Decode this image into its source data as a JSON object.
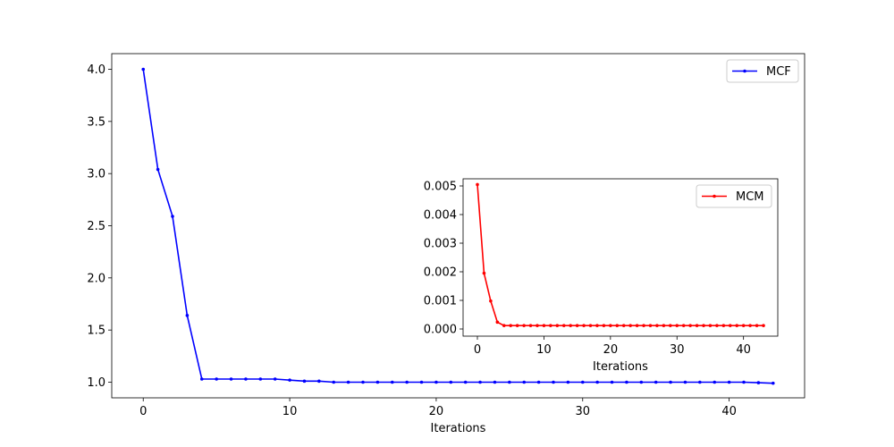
{
  "chart_data": [
    {
      "type": "line",
      "xlabel": "Iterations",
      "ylabel": "",
      "xlim": [
        -2.15,
        45.15
      ],
      "ylim": [
        0.85,
        4.15
      ],
      "xticks": [
        0,
        10,
        20,
        30,
        40
      ],
      "yticks": [
        1.0,
        1.5,
        2.0,
        2.5,
        3.0,
        3.5,
        4.0
      ],
      "ytick_labels": [
        "1.0",
        "1.5",
        "2.0",
        "2.5",
        "3.0",
        "3.5",
        "4.0"
      ],
      "legend_position": "top-right",
      "grid": false,
      "series": [
        {
          "name": "MCF",
          "color": "#0000ff",
          "x": [
            0,
            1,
            2,
            3,
            4,
            5,
            6,
            7,
            8,
            9,
            10,
            11,
            12,
            13,
            14,
            15,
            16,
            17,
            18,
            19,
            20,
            21,
            22,
            23,
            24,
            25,
            26,
            27,
            28,
            29,
            30,
            31,
            32,
            33,
            34,
            35,
            36,
            37,
            38,
            39,
            40,
            41,
            42,
            43
          ],
          "values": [
            4.0,
            3.04,
            2.59,
            1.64,
            1.03,
            1.03,
            1.03,
            1.03,
            1.03,
            1.03,
            1.02,
            1.01,
            1.01,
            1.0,
            1.0,
            1.0,
            1.0,
            1.0,
            1.0,
            1.0,
            1.0,
            1.0,
            1.0,
            1.0,
            1.0,
            1.0,
            1.0,
            1.0,
            1.0,
            1.0,
            1.0,
            1.0,
            1.0,
            1.0,
            1.0,
            1.0,
            1.0,
            1.0,
            1.0,
            1.0,
            1.0,
            1.0,
            0.995,
            0.99
          ]
        }
      ]
    },
    {
      "type": "line",
      "xlabel": "Iterations",
      "ylabel": "",
      "xlim": [
        -2.15,
        45.15
      ],
      "ylim": [
        -0.00025,
        0.00525
      ],
      "xticks": [
        0,
        10,
        20,
        30,
        40
      ],
      "yticks": [
        0.0,
        0.001,
        0.002,
        0.003,
        0.004,
        0.005
      ],
      "ytick_labels": [
        "0.000",
        "0.001",
        "0.002",
        "0.003",
        "0.004",
        "0.005"
      ],
      "legend_position": "top-right",
      "grid": false,
      "series": [
        {
          "name": "MCM",
          "color": "#ff0000",
          "x": [
            0,
            1,
            2,
            3,
            4,
            5,
            6,
            7,
            8,
            9,
            10,
            11,
            12,
            13,
            14,
            15,
            16,
            17,
            18,
            19,
            20,
            21,
            22,
            23,
            24,
            25,
            26,
            27,
            28,
            29,
            30,
            31,
            32,
            33,
            34,
            35,
            36,
            37,
            38,
            39,
            40,
            41,
            42,
            43
          ],
          "values": [
            0.00505,
            0.00195,
            0.00098,
            0.00024,
            0.00012,
            0.00012,
            0.00012,
            0.00012,
            0.00012,
            0.00012,
            0.00012,
            0.00012,
            0.00012,
            0.00012,
            0.00012,
            0.00012,
            0.00012,
            0.00012,
            0.00012,
            0.00012,
            0.00012,
            0.00012,
            0.00012,
            0.00012,
            0.00012,
            0.00012,
            0.00012,
            0.00012,
            0.00012,
            0.00012,
            0.00012,
            0.00012,
            0.00012,
            0.00012,
            0.00012,
            0.00012,
            0.00012,
            0.00012,
            0.00012,
            0.00012,
            0.00012,
            0.00012,
            0.00012,
            0.00012
          ]
        }
      ]
    }
  ]
}
